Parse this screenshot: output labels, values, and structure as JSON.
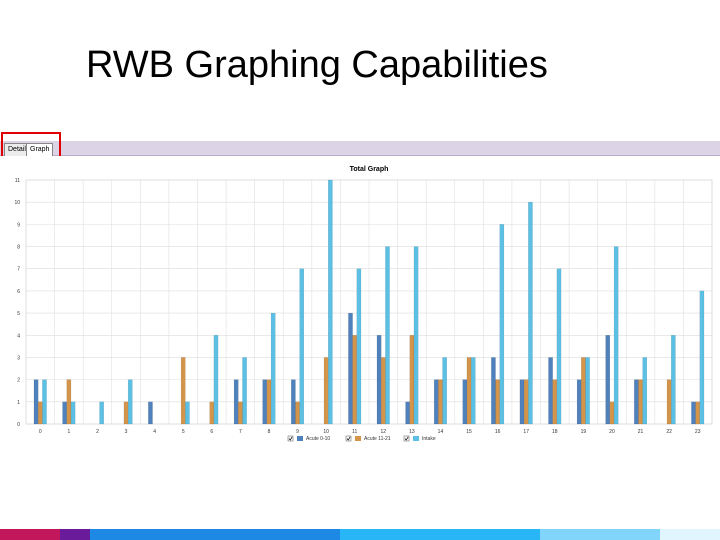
{
  "slide": {
    "title": "RWB Graphing Capabilities"
  },
  "tabs": [
    {
      "label": "Detail"
    },
    {
      "label": "Graph"
    }
  ],
  "chart_data": {
    "type": "bar",
    "title": "Total Graph",
    "xlabel": "",
    "ylabel": "",
    "categories": [
      "0",
      "1",
      "2",
      "3",
      "4",
      "5",
      "6",
      "7",
      "8",
      "9",
      "10",
      "11",
      "12",
      "13",
      "14",
      "15",
      "16",
      "17",
      "18",
      "19",
      "20",
      "21",
      "22",
      "23"
    ],
    "ylim": [
      0,
      11
    ],
    "yticks": [
      0,
      1,
      2,
      3,
      4,
      5,
      6,
      7,
      8,
      9,
      10,
      11
    ],
    "grid": true,
    "legend_position": "bottom",
    "series": [
      {
        "name": "Acute 0-10",
        "color": "#4f81bd",
        "values": [
          2,
          1,
          0,
          0,
          1,
          0,
          0,
          2,
          2,
          2,
          0,
          5,
          4,
          1,
          2,
          2,
          3,
          2,
          3,
          2,
          4,
          2,
          0,
          1
        ]
      },
      {
        "name": "Acute 11-21",
        "color": "#d4954a",
        "values": [
          1,
          2,
          0,
          1,
          0,
          3,
          1,
          1,
          2,
          1,
          3,
          4,
          3,
          4,
          2,
          3,
          2,
          2,
          2,
          3,
          1,
          2,
          2,
          1
        ]
      },
      {
        "name": "Intake",
        "color": "#5bc0e4",
        "values": [
          2,
          1,
          1,
          2,
          0,
          1,
          4,
          3,
          5,
          7,
          11,
          7,
          8,
          8,
          3,
          3,
          9,
          10,
          7,
          3,
          8,
          3,
          4,
          6
        ]
      }
    ]
  },
  "footer": {
    "colors": [
      "#c2185b",
      "#6a1b9a",
      "#1e88e5",
      "#29b6f6",
      "#81d4fa",
      "#e1f5fe"
    ]
  }
}
